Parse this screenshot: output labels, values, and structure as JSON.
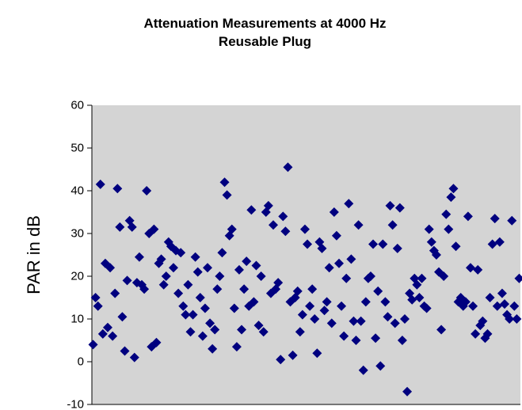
{
  "chart_data": {
    "type": "scatter",
    "title": "Attenuation Measurements at 4000 Hz",
    "subtitle": "Reusable Plug",
    "xlabel": "",
    "ylabel": "PAR in dB",
    "ylim": [
      -10,
      60
    ],
    "yticks": [
      "60",
      "50",
      "40",
      "30",
      "20",
      "10",
      "0",
      "-10"
    ],
    "grid": false,
    "plot_background": "#d4d4d4",
    "marker_color": "#00007f",
    "marker": "diamond",
    "points": [
      [
        1,
        4
      ],
      [
        2,
        15
      ],
      [
        3,
        13
      ],
      [
        4,
        41.5
      ],
      [
        5,
        6.5
      ],
      [
        6,
        23
      ],
      [
        7,
        8
      ],
      [
        8,
        22
      ],
      [
        9,
        6
      ],
      [
        10,
        16
      ],
      [
        11,
        40.5
      ],
      [
        12,
        31.5
      ],
      [
        13,
        10.5
      ],
      [
        14,
        2.5
      ],
      [
        15,
        19
      ],
      [
        16,
        33
      ],
      [
        17,
        31.5
      ],
      [
        18,
        1
      ],
      [
        19,
        18.5
      ],
      [
        20,
        24.5
      ],
      [
        21,
        18
      ],
      [
        22,
        17
      ],
      [
        23,
        40
      ],
      [
        24,
        30
      ],
      [
        25,
        3.5
      ],
      [
        26,
        31
      ],
      [
        27,
        4.5
      ],
      [
        28,
        23
      ],
      [
        29,
        24
      ],
      [
        30,
        18
      ],
      [
        31,
        20
      ],
      [
        32,
        28
      ],
      [
        33,
        27
      ],
      [
        34,
        22
      ],
      [
        35,
        26
      ],
      [
        36,
        16
      ],
      [
        37,
        25.5
      ],
      [
        38,
        13
      ],
      [
        39,
        11
      ],
      [
        40,
        18
      ],
      [
        41,
        7
      ],
      [
        42,
        11
      ],
      [
        43,
        24.5
      ],
      [
        44,
        21
      ],
      [
        45,
        15
      ],
      [
        46,
        6
      ],
      [
        47,
        12.5
      ],
      [
        48,
        22
      ],
      [
        49,
        9
      ],
      [
        50,
        3
      ],
      [
        51,
        7.5
      ],
      [
        52,
        17
      ],
      [
        53,
        20
      ],
      [
        54,
        25.5
      ],
      [
        55,
        42
      ],
      [
        56,
        39
      ],
      [
        57,
        29.5
      ],
      [
        58,
        31
      ],
      [
        59,
        12.5
      ],
      [
        60,
        3.5
      ],
      [
        61,
        21.5
      ],
      [
        62,
        7.5
      ],
      [
        63,
        17
      ],
      [
        64,
        23.5
      ],
      [
        65,
        13
      ],
      [
        66,
        35.5
      ],
      [
        67,
        14
      ],
      [
        68,
        22.5
      ],
      [
        69,
        8.5
      ],
      [
        70,
        20
      ],
      [
        71,
        7
      ],
      [
        72,
        35
      ],
      [
        73,
        36.5
      ],
      [
        74,
        16
      ],
      [
        75,
        32
      ],
      [
        76,
        17
      ],
      [
        77,
        18.5
      ],
      [
        78,
        0.5
      ],
      [
        79,
        34
      ],
      [
        80,
        30.5
      ],
      [
        81,
        45.5
      ],
      [
        82,
        14
      ],
      [
        83,
        1.5
      ],
      [
        84,
        15
      ],
      [
        85,
        16.5
      ],
      [
        86,
        7
      ],
      [
        87,
        11
      ],
      [
        88,
        31
      ],
      [
        89,
        27.5
      ],
      [
        90,
        13
      ],
      [
        91,
        17
      ],
      [
        92,
        10
      ],
      [
        93,
        2
      ],
      [
        94,
        28
      ],
      [
        95,
        26.5
      ],
      [
        96,
        12
      ],
      [
        97,
        14
      ],
      [
        98,
        22
      ],
      [
        99,
        9
      ],
      [
        100,
        35
      ],
      [
        101,
        29.5
      ],
      [
        102,
        23
      ],
      [
        103,
        13
      ],
      [
        104,
        6
      ],
      [
        105,
        19.5
      ],
      [
        106,
        37
      ],
      [
        107,
        24
      ],
      [
        108,
        9.5
      ],
      [
        109,
        5
      ],
      [
        110,
        32
      ],
      [
        111,
        9.5
      ],
      [
        112,
        -2
      ],
      [
        113,
        14
      ],
      [
        114,
        19.5
      ],
      [
        115,
        20
      ],
      [
        116,
        27.5
      ],
      [
        117,
        5.5
      ],
      [
        118,
        16.5
      ],
      [
        119,
        -1
      ],
      [
        120,
        27.5
      ],
      [
        121,
        14
      ],
      [
        122,
        10.5
      ],
      [
        123,
        36.5
      ],
      [
        124,
        32
      ],
      [
        125,
        9
      ],
      [
        126,
        26.5
      ],
      [
        127,
        36
      ],
      [
        128,
        5
      ],
      [
        129,
        10
      ],
      [
        130,
        -7
      ],
      [
        131,
        16
      ],
      [
        132,
        14.5
      ],
      [
        133,
        19.5
      ],
      [
        134,
        18
      ],
      [
        135,
        15
      ],
      [
        136,
        19.5
      ],
      [
        137,
        13
      ],
      [
        138,
        12.5
      ],
      [
        139,
        31
      ],
      [
        140,
        28
      ],
      [
        141,
        26
      ],
      [
        142,
        25
      ],
      [
        143,
        21
      ],
      [
        144,
        7.5
      ],
      [
        145,
        20
      ],
      [
        146,
        34.5
      ],
      [
        147,
        31
      ],
      [
        148,
        38.5
      ],
      [
        149,
        40.5
      ],
      [
        150,
        27
      ],
      [
        151,
        14
      ],
      [
        152,
        15
      ],
      [
        153,
        13
      ],
      [
        154,
        14
      ],
      [
        155,
        34
      ],
      [
        156,
        22
      ],
      [
        157,
        13
      ],
      [
        158,
        6.5
      ],
      [
        159,
        21.5
      ],
      [
        160,
        8.5
      ],
      [
        161,
        9.5
      ],
      [
        162,
        5.5
      ],
      [
        163,
        6.5
      ],
      [
        164,
        15
      ],
      [
        165,
        27.5
      ],
      [
        166,
        33.5
      ],
      [
        167,
        13
      ],
      [
        168,
        28
      ],
      [
        169,
        16
      ],
      [
        170,
        13.5
      ],
      [
        171,
        11
      ],
      [
        172,
        10
      ],
      [
        173,
        33
      ],
      [
        174,
        13
      ],
      [
        175,
        10
      ],
      [
        176,
        19.5
      ]
    ]
  }
}
